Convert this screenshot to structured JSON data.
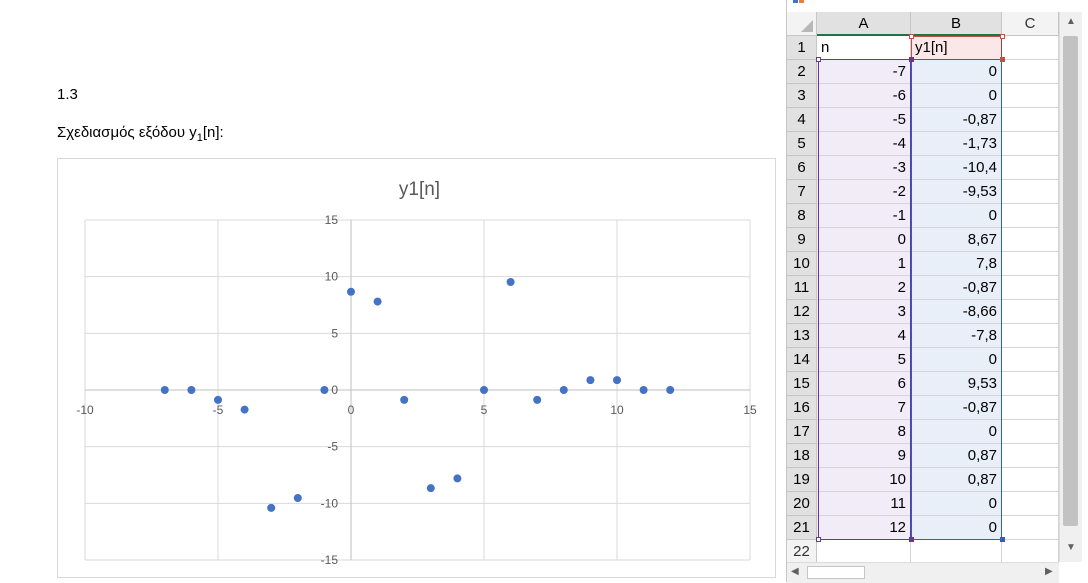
{
  "document": {
    "section_number": "1.3",
    "heading_main": "Σχεδιασμός εξόδου y",
    "heading_sub": "1",
    "heading_tail": "[n]:"
  },
  "chart_data": {
    "type": "scatter",
    "title": "y1[n]",
    "xlabel": "",
    "ylabel": "",
    "xlim": [
      -10,
      15
    ],
    "ylim": [
      -15,
      15
    ],
    "x_ticks": [
      -10,
      -5,
      0,
      5,
      10,
      15
    ],
    "x_tick_labels": [
      "-10",
      "-5",
      "0",
      "5",
      "10",
      "15"
    ],
    "y_ticks": [
      -15,
      -10,
      -5,
      0,
      5,
      10,
      15
    ],
    "y_tick_labels": [
      "-15",
      "-10",
      "-5",
      "0",
      "5",
      "10",
      "15"
    ],
    "grid": true,
    "legend": "none",
    "marker_color": "#4472c4",
    "series": [
      {
        "x": [
          -7,
          -6,
          -5,
          -4,
          -3,
          -2,
          -1,
          0,
          1,
          2,
          3,
          4,
          5,
          6,
          7,
          8,
          9,
          10,
          11,
          12
        ],
        "values": [
          0,
          0,
          -0.87,
          -1.73,
          -10.4,
          -9.53,
          0,
          8.67,
          7.8,
          -0.87,
          -8.66,
          -7.8,
          0,
          9.53,
          -0.87,
          0,
          0.87,
          0.87,
          0,
          0
        ]
      }
    ]
  },
  "spreadsheet": {
    "columns": [
      "A",
      "B",
      "C"
    ],
    "selected_columns": [
      "A",
      "B"
    ],
    "rows": [
      {
        "num": "1",
        "a": "n",
        "b": "y1[n]"
      },
      {
        "num": "2",
        "a": "-7",
        "b": "0"
      },
      {
        "num": "3",
        "a": "-6",
        "b": "0"
      },
      {
        "num": "4",
        "a": "-5",
        "b": "-0,87"
      },
      {
        "num": "5",
        "a": "-4",
        "b": "-1,73"
      },
      {
        "num": "6",
        "a": "-3",
        "b": "-10,4"
      },
      {
        "num": "7",
        "a": "-2",
        "b": "-9,53"
      },
      {
        "num": "8",
        "a": "-1",
        "b": "0"
      },
      {
        "num": "9",
        "a": "0",
        "b": "8,67"
      },
      {
        "num": "10",
        "a": "1",
        "b": "7,8"
      },
      {
        "num": "11",
        "a": "2",
        "b": "-0,87"
      },
      {
        "num": "12",
        "a": "3",
        "b": "-8,66"
      },
      {
        "num": "13",
        "a": "4",
        "b": "-7,8"
      },
      {
        "num": "14",
        "a": "5",
        "b": "0"
      },
      {
        "num": "15",
        "a": "6",
        "b": "9,53"
      },
      {
        "num": "16",
        "a": "7",
        "b": "-0,87"
      },
      {
        "num": "17",
        "a": "8",
        "b": "0"
      },
      {
        "num": "18",
        "a": "9",
        "b": "0,87"
      },
      {
        "num": "19",
        "a": "10",
        "b": "0,87"
      },
      {
        "num": "20",
        "a": "11",
        "b": "0"
      },
      {
        "num": "21",
        "a": "12",
        "b": "0"
      },
      {
        "num": "22",
        "a": "",
        "b": ""
      }
    ]
  }
}
